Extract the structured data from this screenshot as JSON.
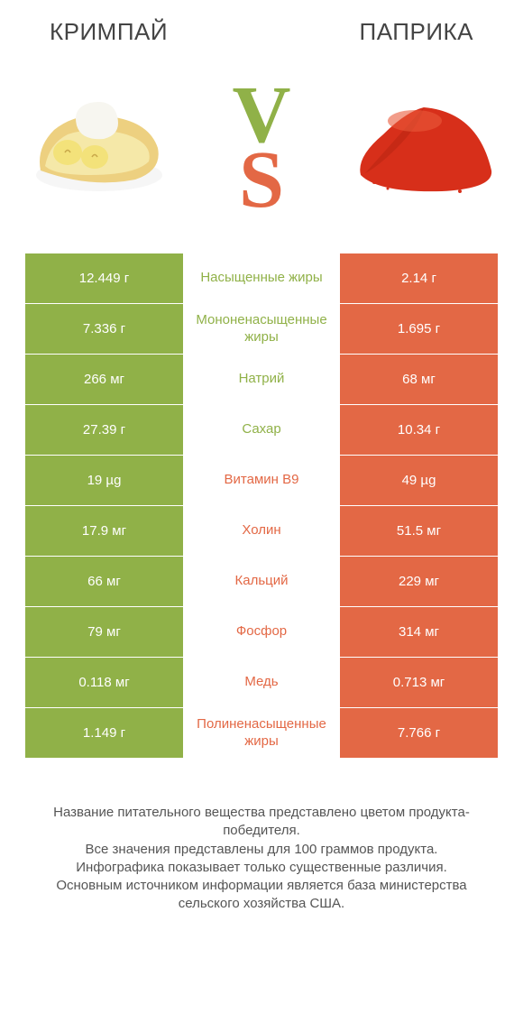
{
  "titles": {
    "left": "КРИМПАЙ",
    "right": "ПАПРИКА"
  },
  "vs": {
    "v": "V",
    "s": "S"
  },
  "colors": {
    "left_title": "#444444",
    "right_title": "#444444",
    "vs_v": "#90b148",
    "vs_s": "#e36845",
    "left_cell": "#90b148",
    "right_cell": "#e36845",
    "mid_bg": "#ffffff",
    "pie_crust": "#edd080",
    "pie_cream": "#f7f6f0",
    "pie_banana": "#f3e27a",
    "paprika_red": "#d72f1a",
    "paprika_dark": "#a61f0f"
  },
  "rows": [
    {
      "left": "12.449 г",
      "mid": "Насыщенные жиры",
      "right": "2.14 г",
      "winner": "left"
    },
    {
      "left": "7.336 г",
      "mid": "Мононенасыщенные жиры",
      "right": "1.695 г",
      "winner": "left"
    },
    {
      "left": "266 мг",
      "mid": "Натрий",
      "right": "68 мг",
      "winner": "left"
    },
    {
      "left": "27.39 г",
      "mid": "Сахар",
      "right": "10.34 г",
      "winner": "left"
    },
    {
      "left": "19 µg",
      "mid": "Витамин B9",
      "right": "49 µg",
      "winner": "right"
    },
    {
      "left": "17.9 мг",
      "mid": "Холин",
      "right": "51.5 мг",
      "winner": "right"
    },
    {
      "left": "66 мг",
      "mid": "Кальций",
      "right": "229 мг",
      "winner": "right"
    },
    {
      "left": "79 мг",
      "mid": "Фосфор",
      "right": "314 мг",
      "winner": "right"
    },
    {
      "left": "0.118 мг",
      "mid": "Медь",
      "right": "0.713 мг",
      "winner": "right"
    },
    {
      "left": "1.149 г",
      "mid": "Полиненасыщенные жиры",
      "right": "7.766 г",
      "winner": "right"
    }
  ],
  "footer": "Название питательного вещества представлено цветом продукта-победителя.\nВсе значения представлены для 100 граммов продукта.\nИнфографика показывает только существенные различия.\nОсновным источником информации является база министерства сельского хозяйства США."
}
